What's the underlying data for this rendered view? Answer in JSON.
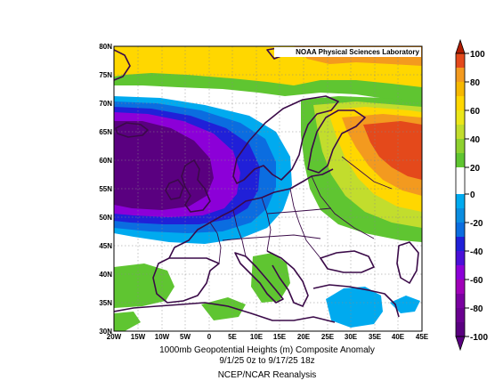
{
  "credit": "NOAA Physical Sciences Laboratory",
  "caption": {
    "line1": "1000mb Geopotential Heights (m)    Composite Anomaly",
    "line2": "9/1/25 0z  to 9/17/25 18z",
    "line3": "NCEP/NCAR Reanalysis"
  },
  "lat_labels": [
    "80N",
    "75N",
    "70N",
    "65N",
    "60N",
    "55N",
    "50N",
    "45N",
    "40N",
    "35N",
    "30N"
  ],
  "lon_labels": [
    "20W",
    "15W",
    "10W",
    "5W",
    "0",
    "5E",
    "10E",
    "15E",
    "20E",
    "25E",
    "30E",
    "35E",
    "40E",
    "45E"
  ],
  "colorbar": {
    "labels": [
      "100",
      "80",
      "60",
      "40",
      "20",
      "0",
      "-20",
      "-40",
      "-60",
      "-80",
      "-100"
    ],
    "colors": {
      "c100": "#b01c00",
      "c80": "#e4491b",
      "c60": "#f39a1f",
      "c40": "#ffd700",
      "c20": "#c2dd2d",
      "c0a": "#5fc531",
      "c0b": "#ffffff",
      "m20": "#00aaef",
      "m40": "#0b6de0",
      "m60": "#2020d8",
      "m80": "#8c00d8",
      "m100": "#5a0080"
    }
  }
}
